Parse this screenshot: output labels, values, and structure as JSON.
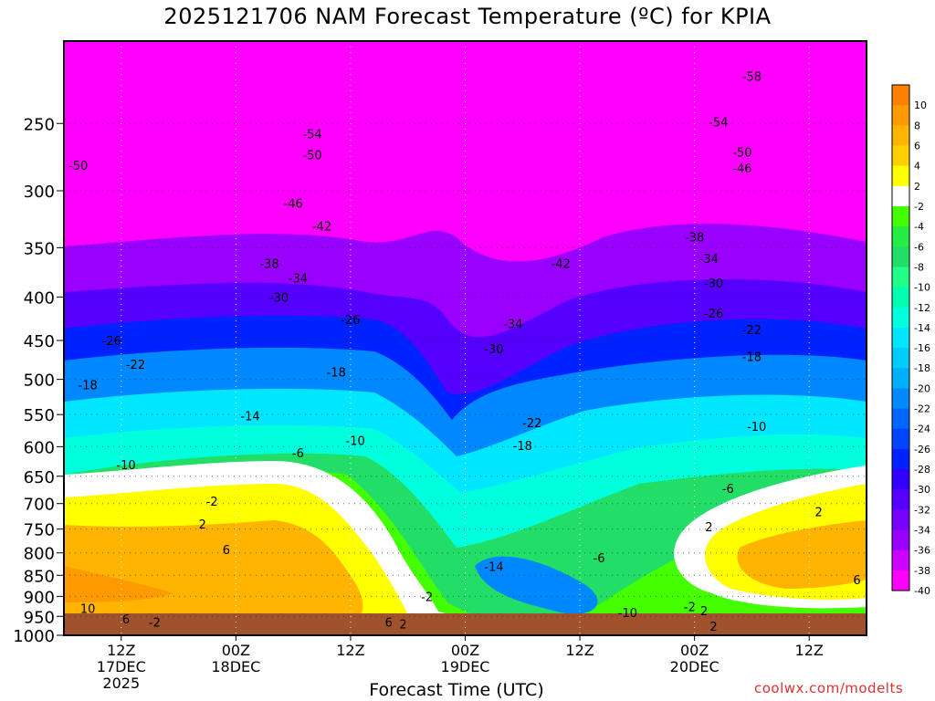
{
  "title": "2025121706 NAM Forecast Temperature (ºC) for KPIA",
  "credit": "coolwx.com/modelts",
  "chart_data": {
    "type": "heatmap",
    "title": "2025121706 NAM Forecast Temperature (ºC) for KPIA",
    "xlabel": "Forecast Time (UTC)",
    "ylabel": "",
    "x_ticks": [
      {
        "hour": 6,
        "lines": [
          "12Z",
          "17DEC",
          "2025"
        ]
      },
      {
        "hour": 18,
        "lines": [
          "00Z",
          "18DEC"
        ]
      },
      {
        "hour": 30,
        "lines": [
          "12Z"
        ]
      },
      {
        "hour": 42,
        "lines": [
          "00Z",
          "19DEC"
        ]
      },
      {
        "hour": 54,
        "lines": [
          "12Z"
        ]
      },
      {
        "hour": 66,
        "lines": [
          "00Z",
          "20DEC"
        ]
      },
      {
        "hour": 78,
        "lines": [
          "12Z"
        ]
      }
    ],
    "x_range_hours": [
      0,
      84
    ],
    "y_scale": "log",
    "y_range_hpa": [
      1000,
      200
    ],
    "y_ticks": [
      250,
      300,
      350,
      400,
      450,
      500,
      550,
      600,
      650,
      700,
      750,
      800,
      850,
      900,
      950,
      1000
    ],
    "grid": true,
    "colorbar": {
      "placement": "right",
      "levels": [
        10,
        8,
        6,
        4,
        2,
        -2,
        -4,
        -6,
        -8,
        -10,
        -12,
        -14,
        -16,
        -18,
        -20,
        -22,
        -24,
        -26,
        -28,
        -30,
        -32,
        -34,
        -36,
        -38,
        -40
      ],
      "colors": [
        "#ff7f00",
        "#ff9a00",
        "#ffb400",
        "#ffd000",
        "#ffff00",
        "#ffffff",
        "#44ff00",
        "#22ee44",
        "#22dd66",
        "#22ff88",
        "#00ffb0",
        "#00ffdd",
        "#00e6ff",
        "#00ccff",
        "#00b0ff",
        "#0088ff",
        "#0066ff",
        "#0044ff",
        "#0022ff",
        "#3300ff",
        "#5500ff",
        "#7700ff",
        "#9900ff",
        "#cc00ff",
        "#ff00ff"
      ]
    },
    "contour_labels": [
      {
        "h": 1.5,
        "p": 280,
        "t": "-50"
      },
      {
        "h": 26,
        "p": 272,
        "t": "-50"
      },
      {
        "h": 26,
        "p": 257,
        "t": "-54"
      },
      {
        "h": 24,
        "p": 310,
        "t": "-46"
      },
      {
        "h": 27,
        "p": 330,
        "t": "-42"
      },
      {
        "h": 21.5,
        "p": 365,
        "t": "-38"
      },
      {
        "h": 24.5,
        "p": 380,
        "t": "-34"
      },
      {
        "h": 22.5,
        "p": 400,
        "t": "-30"
      },
      {
        "h": 30,
        "p": 425,
        "t": "-26"
      },
      {
        "h": 5,
        "p": 450,
        "t": "-26"
      },
      {
        "h": 7.5,
        "p": 480,
        "t": "-22"
      },
      {
        "h": 2.5,
        "p": 507,
        "t": "-18"
      },
      {
        "h": 28.5,
        "p": 490,
        "t": "-18"
      },
      {
        "h": 19.5,
        "p": 552,
        "t": "-14"
      },
      {
        "h": 6.5,
        "p": 630,
        "t": "-10"
      },
      {
        "h": 30.5,
        "p": 590,
        "t": "-10"
      },
      {
        "h": 24.5,
        "p": 610,
        "t": "-6"
      },
      {
        "h": 15.5,
        "p": 695,
        "t": "-2"
      },
      {
        "h": 14.5,
        "p": 740,
        "t": "2"
      },
      {
        "h": 17,
        "p": 793,
        "t": "6"
      },
      {
        "h": 2.5,
        "p": 930,
        "t": "10"
      },
      {
        "h": 6.5,
        "p": 957,
        "t": "6"
      },
      {
        "h": 9.5,
        "p": 965,
        "t": "-2"
      },
      {
        "h": 34,
        "p": 965,
        "t": "6"
      },
      {
        "h": 35.5,
        "p": 970,
        "t": "2"
      },
      {
        "h": 38,
        "p": 900,
        "t": "-2"
      },
      {
        "h": 45,
        "p": 830,
        "t": "-14"
      },
      {
        "h": 47,
        "p": 430,
        "t": "-34"
      },
      {
        "h": 45,
        "p": 460,
        "t": "-30"
      },
      {
        "h": 49,
        "p": 562,
        "t": "-22"
      },
      {
        "h": 48,
        "p": 598,
        "t": "-18"
      },
      {
        "h": 52,
        "p": 365,
        "t": "-42"
      },
      {
        "h": 56,
        "p": 810,
        "t": "-6"
      },
      {
        "h": 59,
        "p": 940,
        "t": "-10"
      },
      {
        "h": 65.5,
        "p": 925,
        "t": "-2"
      },
      {
        "h": 67,
        "p": 935,
        "t": "2"
      },
      {
        "h": 68,
        "p": 975,
        "t": "2"
      },
      {
        "h": 66,
        "p": 340,
        "t": "-38"
      },
      {
        "h": 67.5,
        "p": 360,
        "t": "-34"
      },
      {
        "h": 68,
        "p": 385,
        "t": "-30"
      },
      {
        "h": 68,
        "p": 418,
        "t": "-26"
      },
      {
        "h": 72,
        "p": 437,
        "t": "-22"
      },
      {
        "h": 72,
        "p": 470,
        "t": "-18"
      },
      {
        "h": 72.5,
        "p": 568,
        "t": "-10"
      },
      {
        "h": 69.5,
        "p": 672,
        "t": "-6"
      },
      {
        "h": 67.5,
        "p": 745,
        "t": "2"
      },
      {
        "h": 79,
        "p": 715,
        "t": "2"
      },
      {
        "h": 83,
        "p": 860,
        "t": "6"
      },
      {
        "h": 71,
        "p": 282,
        "t": "-46"
      },
      {
        "h": 71,
        "p": 270,
        "t": "-50"
      },
      {
        "h": 68.5,
        "p": 249,
        "t": "-54"
      },
      {
        "h": 72,
        "p": 220,
        "t": "-58"
      }
    ]
  }
}
